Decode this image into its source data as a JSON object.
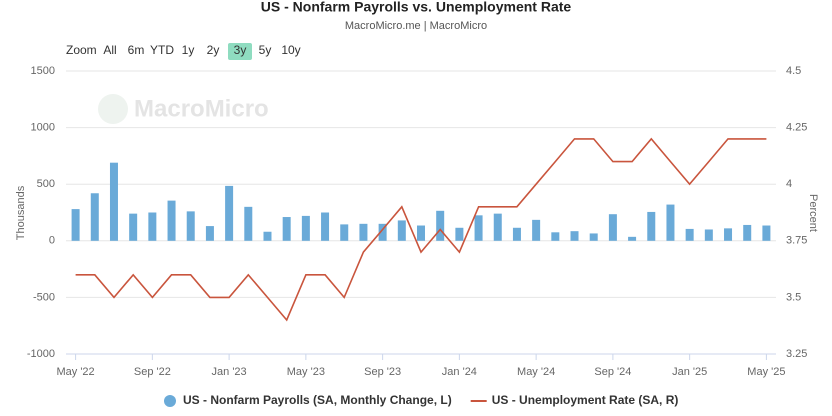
{
  "chart_data": {
    "type": "bar-line",
    "title": "US - Nonfarm Payrolls vs. Unemployment Rate",
    "subtitle": "MacroMicro.me | MacroMicro",
    "watermark": "MacroMicro",
    "range_selector": {
      "label": "Zoom",
      "buttons": [
        "All",
        "6m",
        "YTD",
        "1y",
        "2y",
        "3y",
        "5y",
        "10y"
      ],
      "selected": 5
    },
    "categories": [
      "May '22",
      null,
      null,
      null,
      "Sep '22",
      null,
      null,
      null,
      "Jan '23",
      null,
      null,
      null,
      "May '23",
      null,
      null,
      null,
      "Sep '23",
      null,
      null,
      null,
      "Jan '24",
      null,
      null,
      null,
      "May '24",
      null,
      null,
      null,
      "Sep '24",
      null,
      null,
      null,
      "Jan '25",
      null,
      null,
      null,
      "May '25"
    ],
    "y_label": "Thousands",
    "y2_label": "Percent",
    "ylim": [
      -1000,
      1500
    ],
    "yticks": [
      -1000,
      -500,
      0,
      500,
      1000,
      1500
    ],
    "y2lim": [
      3.25,
      4.5
    ],
    "y2ticks": [
      3.25,
      3.5,
      3.75,
      4,
      4.25,
      4.5
    ],
    "grid": true,
    "legend": "bottom",
    "series": [
      {
        "name": "US - Nonfarm Payrolls (SA, Monthly Change, L)",
        "type": "bar",
        "color": "#6aaad8",
        "values": [
          280,
          420,
          690,
          240,
          250,
          355,
          260,
          130,
          485,
          300,
          80,
          210,
          220,
          250,
          145,
          150,
          150,
          180,
          135,
          265,
          115,
          225,
          240,
          115,
          185,
          75,
          85,
          65,
          235,
          35,
          255,
          320,
          105,
          100,
          110,
          140,
          135
        ]
      },
      {
        "name": "US - Unemployment Rate (SA, R)",
        "type": "line",
        "axis": "y2",
        "color": "#c9553d",
        "values": [
          3.6,
          3.6,
          3.5,
          3.6,
          3.5,
          3.6,
          3.6,
          3.5,
          3.5,
          3.6,
          3.5,
          3.4,
          3.6,
          3.6,
          3.5,
          3.7,
          3.8,
          3.9,
          3.7,
          3.8,
          3.7,
          3.9,
          3.9,
          3.9,
          4.0,
          4.1,
          4.2,
          4.2,
          4.1,
          4.1,
          4.2,
          4.1,
          4.0,
          4.1,
          4.2,
          4.2,
          4.2
        ]
      }
    ]
  }
}
